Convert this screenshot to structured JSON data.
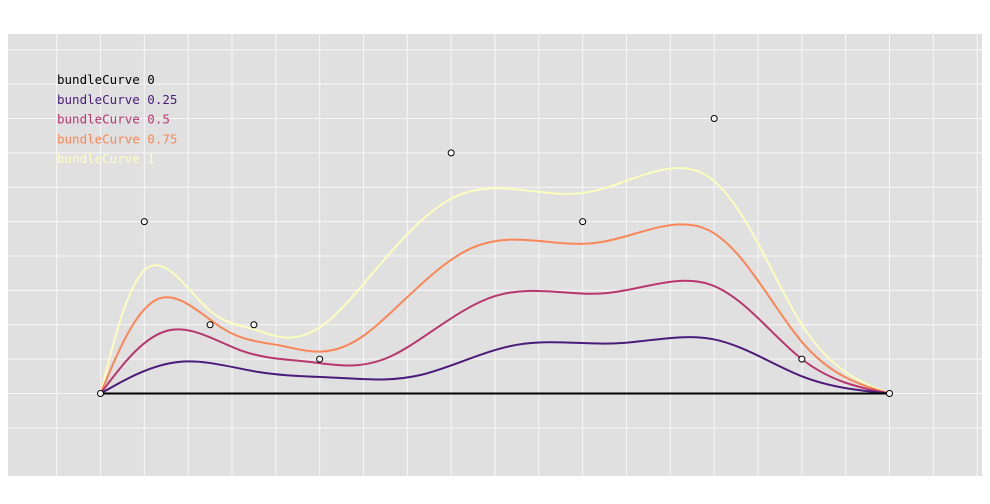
{
  "chart_data": {
    "type": "line",
    "title": "",
    "xlabel": "",
    "ylabel": "",
    "grid": true,
    "legend_position": "top-left",
    "plot_background": "#e0e0e0",
    "grid_color": "#f7f7f7",
    "control_points": [
      {
        "x": 0.0,
        "y": 0.0
      },
      {
        "x": 0.05,
        "y": 0.5
      },
      {
        "x": 0.125,
        "y": 0.2
      },
      {
        "x": 0.175,
        "y": 0.2
      },
      {
        "x": 0.25,
        "y": 0.1
      },
      {
        "x": 0.4,
        "y": 0.7
      },
      {
        "x": 0.55,
        "y": 0.5
      },
      {
        "x": 0.7,
        "y": 0.8
      },
      {
        "x": 0.8,
        "y": 0.1
      },
      {
        "x": 0.9,
        "y": 0.0
      }
    ],
    "series": [
      {
        "name": "bundleCurve 0",
        "beta": 0.0,
        "color": "#000000"
      },
      {
        "name": "bundleCurve 0.25",
        "beta": 0.25,
        "color": "#4b1b7a"
      },
      {
        "name": "bundleCurve 0.5",
        "beta": 0.5,
        "color": "#b8356e"
      },
      {
        "name": "bundleCurve 0.75",
        "beta": 0.75,
        "color": "#fa8657"
      },
      {
        "name": "bundleCurve 1",
        "beta": 1.0,
        "color": "#fcfdbf"
      }
    ]
  }
}
